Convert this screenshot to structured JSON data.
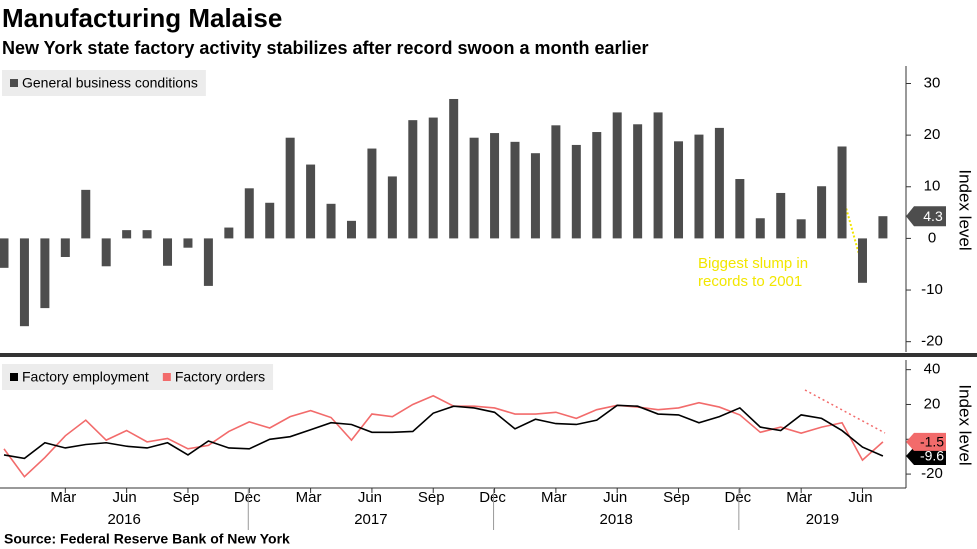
{
  "title": "Manufacturing Malaise",
  "subtitle": "New York state factory activity stabilizes after record swoon a month earlier",
  "source": "Source: Federal Reserve Bank of New York",
  "chart_data": [
    {
      "type": "bar",
      "ylabel": "Index level",
      "categories": [
        null,
        null,
        null,
        "Mar",
        null,
        null,
        "Jun",
        null,
        null,
        "Sep",
        null,
        null,
        "Dec",
        null,
        null,
        "Mar",
        null,
        null,
        "Jun",
        null,
        null,
        "Sep",
        null,
        null,
        "Dec",
        null,
        null,
        "Mar",
        null,
        null,
        "Jun",
        null,
        null,
        "Sep",
        null,
        null,
        "Dec",
        null,
        null,
        "Mar",
        null,
        null,
        "Jun",
        null
      ],
      "year_labels": [
        "2016",
        "2017",
        "2018",
        "2019"
      ],
      "series": [
        {
          "name": "General business conditions",
          "color": "#4d4d4d",
          "values": [
            -5.7,
            -17,
            -13.5,
            -3.6,
            9.4,
            -5.4,
            1.6,
            1.6,
            -5.3,
            -1.8,
            -9.2,
            2.1,
            9.7,
            6.9,
            19.5,
            14.3,
            6.7,
            3.4,
            17.4,
            12,
            22.9,
            23.4,
            27,
            19.5,
            20.4,
            18.7,
            16.5,
            21.9,
            18.1,
            20.6,
            24.4,
            22.1,
            24.4,
            18.8,
            20.1,
            21.4,
            11.5,
            3.9,
            8.8,
            3.7,
            10.1,
            17.8,
            -8.6,
            4.3
          ]
        }
      ],
      "ylim": [
        -22,
        33
      ],
      "yticks": [
        -20,
        -10,
        0,
        10,
        20,
        30
      ],
      "grid": false,
      "annotation": "Biggest slump in records to 2001",
      "annotation_color": "#f2e600"
    },
    {
      "type": "line",
      "ylabel": "Index level",
      "series": [
        {
          "name": "Factory employment",
          "color": "#000000",
          "values": [
            -9,
            -11,
            -2,
            -5,
            -3,
            -2,
            -4,
            -5,
            -2,
            -9,
            -1,
            -5,
            -5.5,
            0,
            1.5,
            5.5,
            9.5,
            8.5,
            4,
            4,
            4.5,
            15,
            19,
            18,
            15.5,
            6,
            11.5,
            9,
            8.5,
            11,
            19.5,
            19,
            14.5,
            14,
            9.5,
            13,
            18,
            7,
            5,
            14,
            12,
            5,
            -4.5,
            -9.6
          ]
        },
        {
          "name": "Factory orders",
          "color": "#f26b6b",
          "values": [
            -5.5,
            -21.5,
            -10.5,
            2,
            11,
            -0.5,
            5,
            -1.5,
            0.5,
            -5.5,
            -3.5,
            4.5,
            10,
            6.5,
            13,
            16.5,
            12.5,
            -0.5,
            14.5,
            13,
            20,
            25,
            19,
            19,
            18,
            14.5,
            14.5,
            15.5,
            12,
            17,
            19.5,
            18.5,
            17,
            18,
            21,
            18.5,
            14,
            4,
            7,
            3.5,
            7,
            9.5,
            -12,
            -1.5
          ]
        }
      ],
      "ylim": [
        -28,
        44.4
      ],
      "yticks": [
        -20,
        0,
        20,
        40
      ],
      "grid": false
    }
  ]
}
